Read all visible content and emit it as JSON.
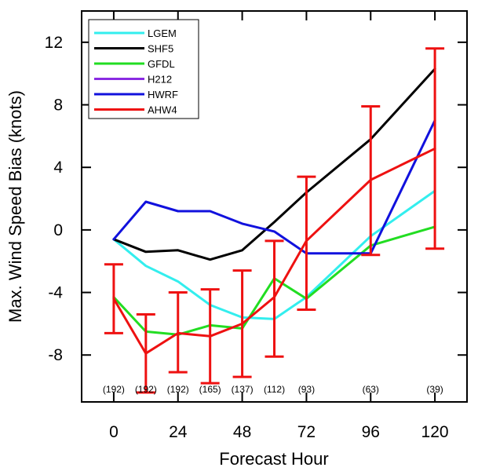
{
  "chart_data": {
    "type": "line",
    "xlabel": "Forecast Hour",
    "ylabel": "Max. Wind Speed Bias (knots)",
    "xlim": [
      -12,
      132
    ],
    "ylim": [
      -11,
      14
    ],
    "x_ticks": [
      0,
      24,
      48,
      72,
      96,
      120
    ],
    "y_ticks": [
      12,
      8,
      4,
      0,
      -4,
      -8
    ],
    "grid": false,
    "legend_position": "top-left",
    "sample_counts": [
      {
        "x": 0,
        "label": "(192)"
      },
      {
        "x": 12,
        "label": "(192)"
      },
      {
        "x": 24,
        "label": "(192)"
      },
      {
        "x": 36,
        "label": "(165)"
      },
      {
        "x": 48,
        "label": "(137)"
      },
      {
        "x": 60,
        "label": "(112)"
      },
      {
        "x": 72,
        "label": "(93)"
      },
      {
        "x": 96,
        "label": "(63)"
      },
      {
        "x": 120,
        "label": "(39)"
      }
    ],
    "series": [
      {
        "name": "LGEM",
        "color": "#33eeee",
        "x": [
          0,
          12,
          24,
          36,
          48,
          60,
          72,
          96,
          120
        ],
        "y": [
          -0.6,
          -2.3,
          -3.3,
          -4.8,
          -5.6,
          -5.7,
          -4.3,
          -0.4,
          2.5
        ]
      },
      {
        "name": "SHF5",
        "color": "#000000",
        "x": [
          0,
          12,
          24,
          36,
          48,
          60,
          72,
          96,
          120
        ],
        "y": [
          -0.6,
          -1.4,
          -1.3,
          -1.9,
          -1.3,
          0.5,
          2.4,
          5.8,
          10.3
        ]
      },
      {
        "name": "GFDL",
        "color": "#22dd22",
        "x": [
          0,
          12,
          24,
          36,
          48,
          60,
          72,
          96,
          120
        ],
        "y": [
          -4.3,
          -6.5,
          -6.7,
          -6.1,
          -6.3,
          -3.1,
          -4.4,
          -1.0,
          0.2
        ]
      },
      {
        "name": "H212",
        "color": "#8a2be2",
        "x": [],
        "y": []
      },
      {
        "name": "HWRF",
        "color": "#1111dd",
        "x": [
          0,
          12,
          24,
          36,
          48,
          60,
          72,
          96,
          120
        ],
        "y": [
          -0.6,
          1.8,
          1.2,
          1.2,
          0.4,
          -0.1,
          -1.5,
          -1.5,
          7.0
        ]
      },
      {
        "name": "AHW4",
        "color": "#ee1111",
        "x": [
          0,
          12,
          24,
          36,
          48,
          60,
          72,
          96,
          120
        ],
        "y": [
          -4.4,
          -7.9,
          -6.6,
          -6.8,
          -6.0,
          -4.3,
          -0.7,
          3.2,
          5.2
        ]
      }
    ],
    "error_bars": {
      "series": "AHW4",
      "color": "#ee1111",
      "x": [
        0,
        12,
        24,
        36,
        48,
        60,
        72,
        96,
        120
      ],
      "low": [
        -6.6,
        -10.4,
        -9.1,
        -9.8,
        -9.4,
        -8.1,
        -5.1,
        -1.6,
        -1.2
      ],
      "high": [
        -2.2,
        -5.4,
        -4.0,
        -3.8,
        -2.6,
        -0.7,
        3.4,
        7.9,
        11.6
      ]
    }
  }
}
